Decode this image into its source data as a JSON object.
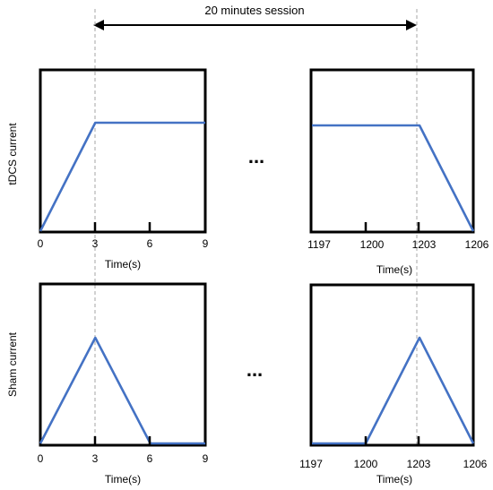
{
  "session_label": "20 minutes session",
  "ellipsis": "...",
  "colors": {
    "waveform": "#4472C4",
    "guide": "#a6a6a6",
    "frame": "#000000"
  },
  "panels": {
    "tdcs_left": {
      "ylabel": "tDCS current",
      "xlabel": "Time(s)",
      "ticks": [
        "0",
        "3",
        "6",
        "9"
      ],
      "waveform_time_s": [
        0,
        3,
        9
      ],
      "waveform_level": [
        0,
        1,
        1
      ]
    },
    "tdcs_right": {
      "xlabel": "Time(s)",
      "ticks": [
        "1197",
        "1200",
        "1203",
        "1206"
      ],
      "waveform_time_s": [
        1197,
        1203,
        1206
      ],
      "waveform_level": [
        1,
        1,
        0
      ]
    },
    "sham_left": {
      "ylabel": "Sham current",
      "xlabel": "Time(s)",
      "ticks": [
        "0",
        "3",
        "6",
        "9"
      ],
      "waveform_time_s": [
        0,
        3,
        6,
        9
      ],
      "waveform_level": [
        0,
        1,
        0,
        0
      ]
    },
    "sham_right": {
      "xlabel": "Time(s)",
      "ticks": [
        "1197",
        "1200",
        "1203",
        "1206"
      ],
      "waveform_time_s": [
        1197,
        1200,
        1203,
        1206
      ],
      "waveform_level": [
        0,
        0,
        1,
        0
      ]
    }
  }
}
